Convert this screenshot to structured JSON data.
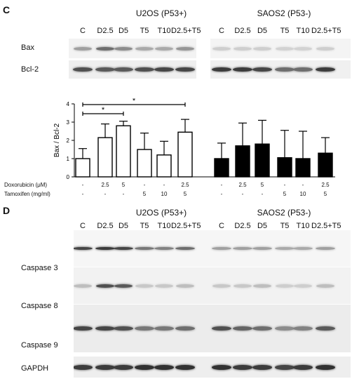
{
  "panel_c": {
    "letter": "C",
    "group_left": "U2OS (P53+)",
    "group_right": "SAOS2 (P53-)",
    "lanes_left": [
      "C",
      "D2.5",
      "D5",
      "T5",
      "T10",
      "D2.5+T5"
    ],
    "lanes_right": [
      "C",
      "D2.5",
      "D5",
      "T5",
      "T10",
      "D2.5+T5"
    ],
    "blots": [
      "Bax",
      "Bcl-2"
    ]
  },
  "chart_data": {
    "type": "bar",
    "ylabel": "Bax / Bcl-2",
    "ylim": [
      0,
      4
    ],
    "yticks": [
      "0",
      "1",
      "2",
      "3",
      "4"
    ],
    "series": [
      {
        "values": [
          1.0,
          2.15,
          2.8,
          1.5,
          1.2,
          2.45
        ],
        "errors": [
          0.55,
          0.75,
          0.25,
          0.9,
          0.75,
          0.7
        ],
        "fill": "#ffffff"
      },
      {
        "values": [
          1.0,
          1.7,
          1.8,
          1.05,
          1.0,
          1.3
        ],
        "errors": [
          0.85,
          1.25,
          1.3,
          1.5,
          1.5,
          0.85
        ],
        "fill": "#000000"
      }
    ],
    "significance": [
      {
        "from": 0,
        "to": 2,
        "label": "*"
      },
      {
        "from": 0,
        "to": 5,
        "label": "*"
      }
    ],
    "conditions": [
      {
        "label": "Doxorubicin (μM)",
        "values": [
          "-",
          "2.5",
          "5",
          "-",
          "-",
          "2.5",
          "-",
          "2.5",
          "5",
          "-",
          "-",
          "2.5"
        ]
      },
      {
        "label": "Tamoxifen (mg/ml)",
        "values": [
          "-",
          "-",
          "-",
          "5",
          "10",
          "5",
          "-",
          "-",
          "-",
          "5",
          "10",
          "5"
        ]
      }
    ]
  },
  "panel_d": {
    "letter": "D",
    "group_left": "U2OS (P53+)",
    "group_right": "SAOS2 (P53-)",
    "lanes_left": [
      "C",
      "D2.5",
      "D5",
      "T5",
      "T10",
      "D2.5+T5"
    ],
    "lanes_right": [
      "C",
      "D2.5",
      "D5",
      "T5",
      "T10",
      "D2.5+T5"
    ],
    "blots": [
      "Caspase 3",
      "Caspase 8",
      "Caspase 9",
      "GAPDH"
    ]
  }
}
